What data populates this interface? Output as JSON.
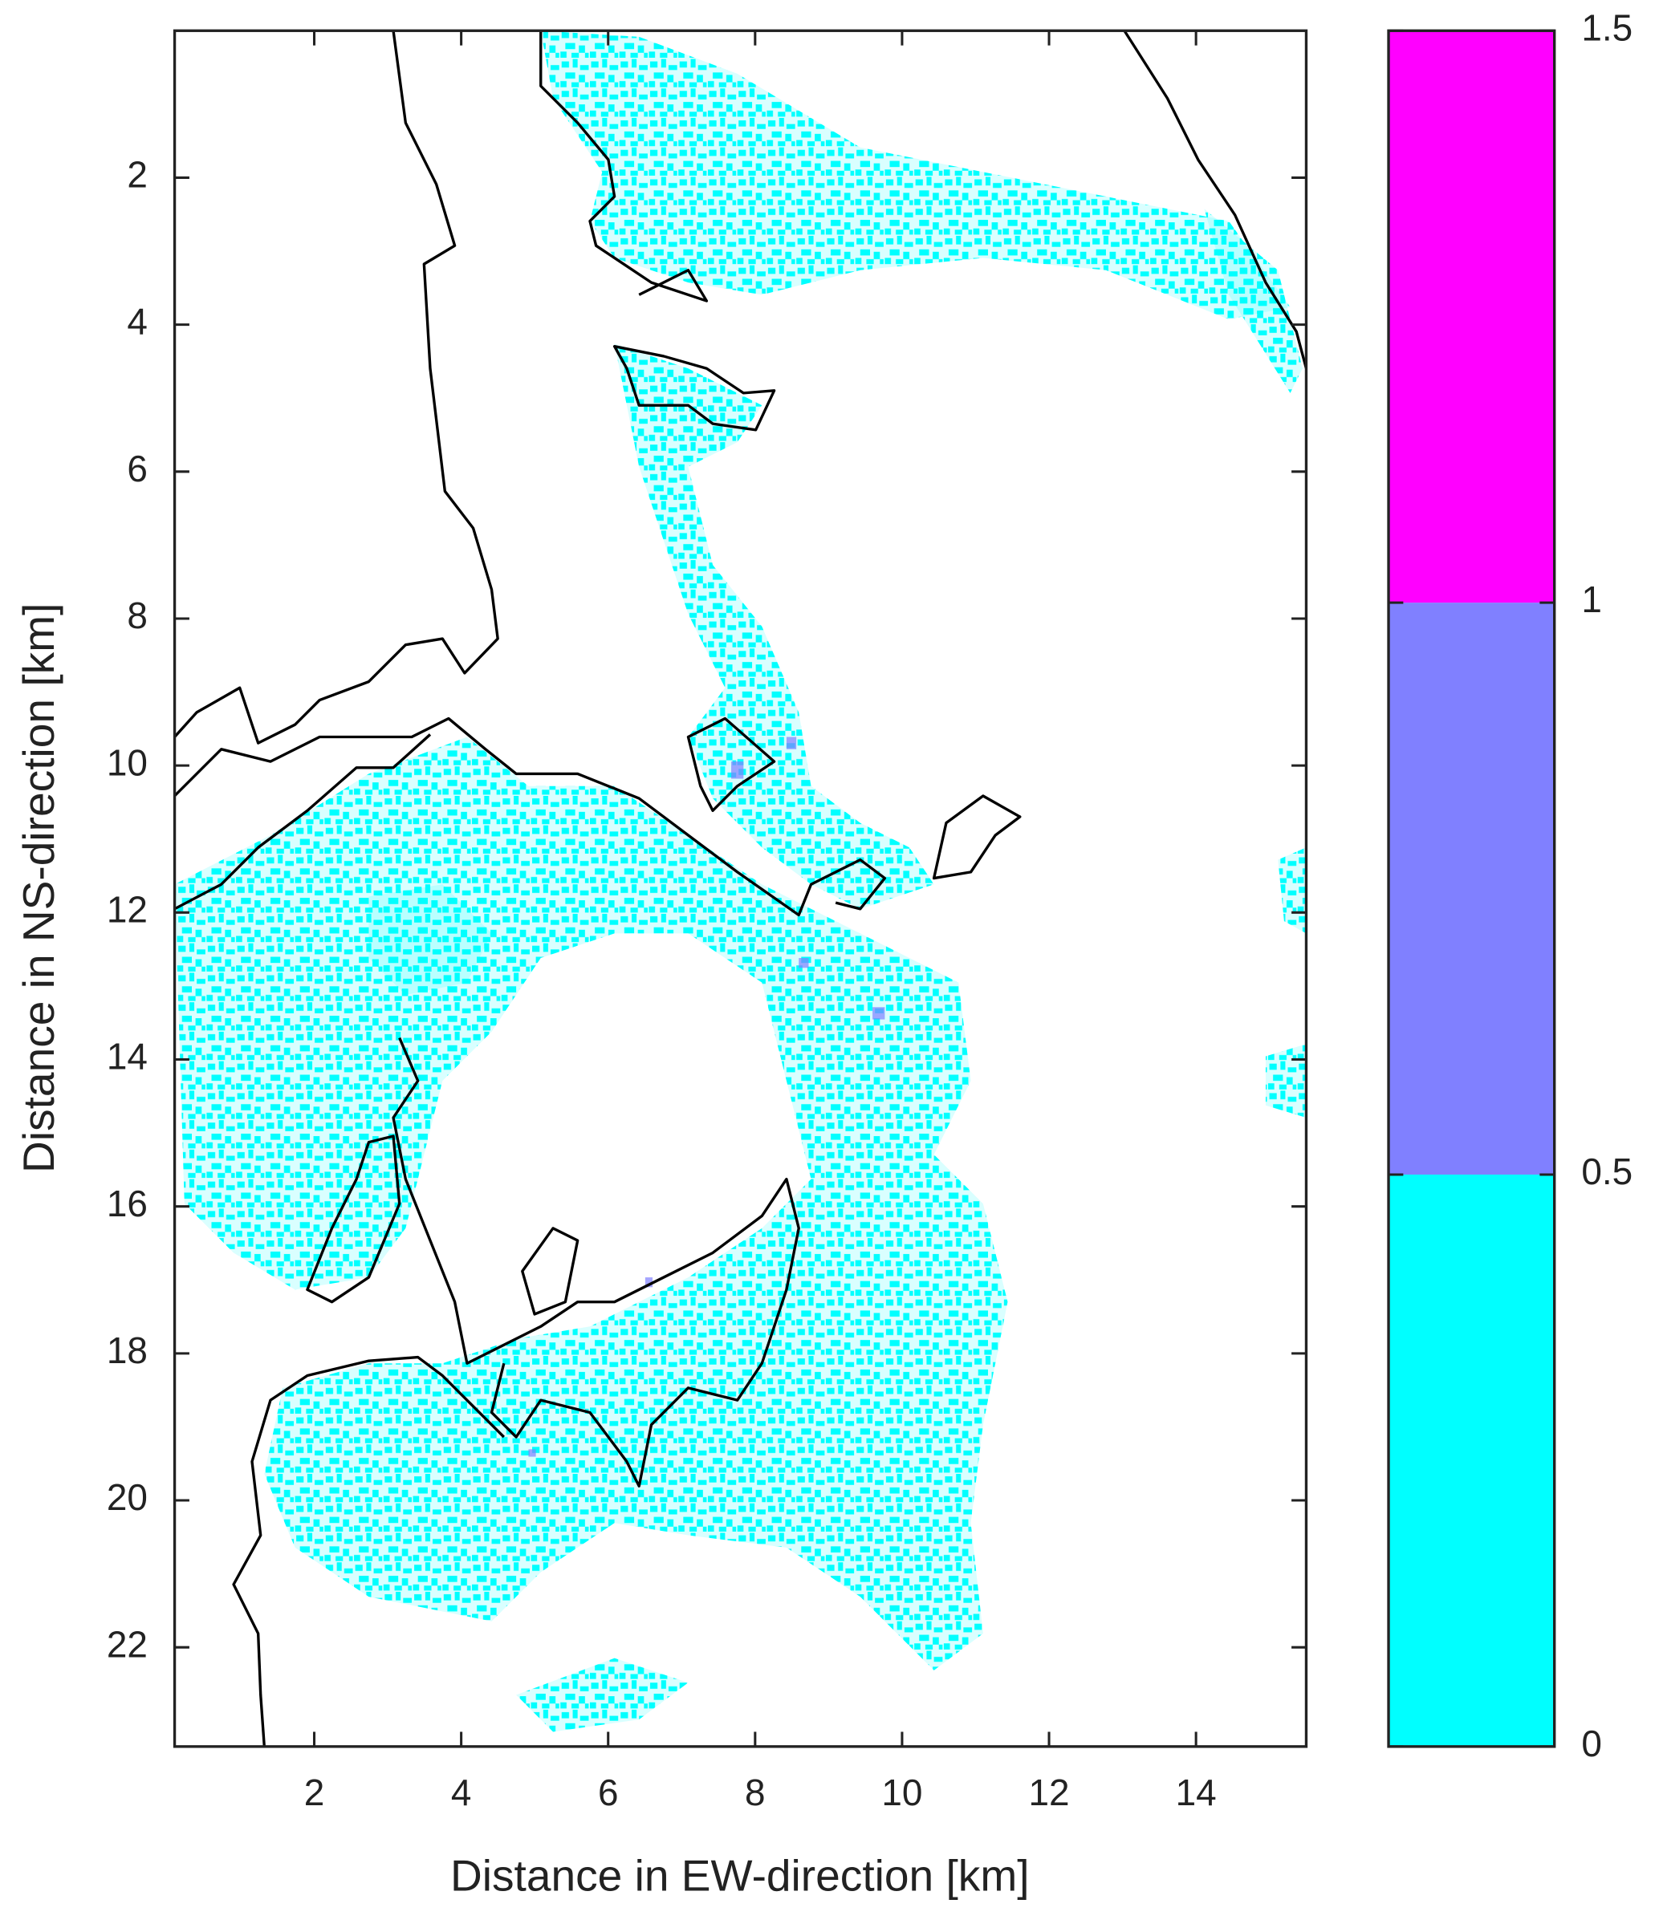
{
  "chart_data": {
    "type": "heatmap",
    "xlabel": "Distance in EW-direction [km]",
    "ylabel": "Distance in NS-direction [km]",
    "xlim": [
      0.1,
      15.5
    ],
    "ylim": [
      0,
      23.35
    ],
    "y_inverted": true,
    "xticks": [
      2,
      4,
      6,
      8,
      10,
      12,
      14
    ],
    "yticks": [
      2,
      4,
      6,
      8,
      10,
      12,
      14,
      16,
      18,
      20,
      22
    ],
    "colorbar": {
      "lim": [
        0,
        1.5
      ],
      "ticks": [
        0,
        0.5,
        1,
        1.5
      ],
      "colors": [
        "#00ffff",
        "#8080ff",
        "#ff00ff"
      ]
    }
  }
}
